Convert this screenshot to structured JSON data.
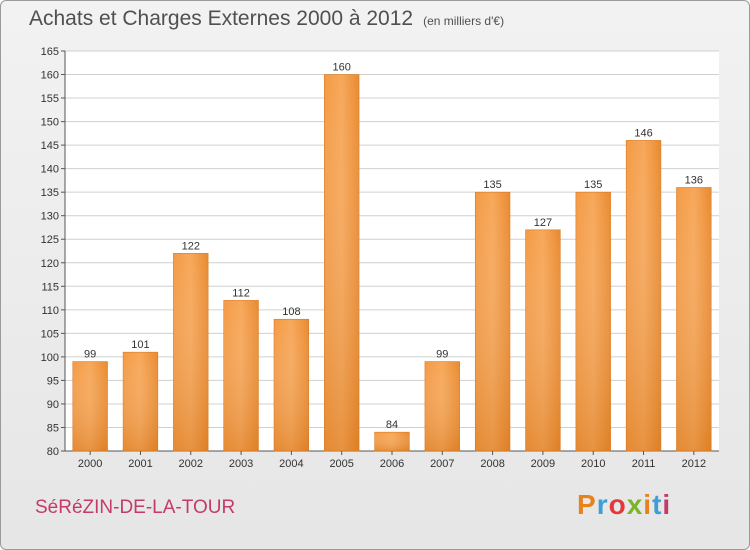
{
  "title": "Achats et Charges Externes 2000 à 2012",
  "subtitle": "(en milliers d'€)",
  "city": "SéRéZIN-DE-LA-TOUR",
  "brand": {
    "text": "Proxiti",
    "letters": [
      "P",
      "r",
      "o",
      "x",
      "i",
      "t",
      "i"
    ],
    "colors": [
      "#e8821c",
      "#3d9fd6",
      "#e23a3a",
      "#7ab52a",
      "#e8821c",
      "#3d9fd6",
      "#c43a6b"
    ]
  },
  "colors": {
    "bar": "#f59b44",
    "bar_dark": "#d97a22",
    "grid": "#d0d0d0"
  },
  "chart_data": {
    "type": "bar",
    "categories": [
      "2000",
      "2001",
      "2002",
      "2003",
      "2004",
      "2005",
      "2006",
      "2007",
      "2008",
      "2009",
      "2010",
      "2011",
      "2012"
    ],
    "values": [
      99,
      101,
      122,
      112,
      108,
      160,
      84,
      99,
      135,
      127,
      135,
      146,
      136
    ],
    "title": "Achats et Charges Externes 2000 à 2012",
    "ylim": [
      80,
      165
    ],
    "yticks": [
      80,
      85,
      90,
      95,
      100,
      105,
      110,
      115,
      120,
      125,
      130,
      135,
      140,
      145,
      150,
      155,
      160,
      165
    ],
    "grid": true,
    "legend": "none"
  }
}
